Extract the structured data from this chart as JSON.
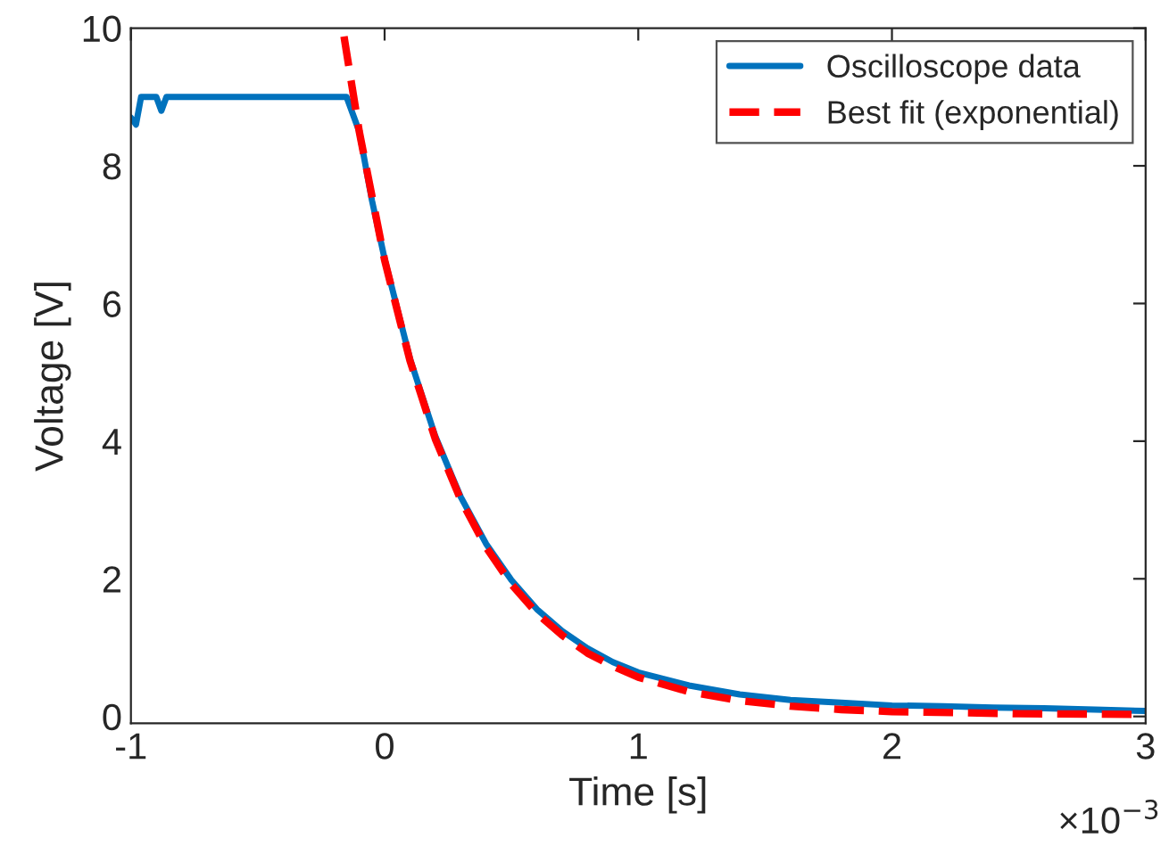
{
  "chart_data": {
    "type": "line",
    "xlabel": "Time [s]",
    "ylabel": "Voltage [V]",
    "xlim": [
      -1,
      3
    ],
    "ylim": [
      -0.1,
      10
    ],
    "xticks": [
      -1,
      0,
      1,
      2,
      3
    ],
    "yticks": [
      0,
      2,
      4,
      6,
      8,
      10
    ],
    "grid": false,
    "legend": "top right",
    "annotations": [
      "×10$^{−3}$"
    ],
    "series": [
      {
        "name": "Oscilloscope data",
        "color": "#0072bd",
        "line_style": "solid",
        "x": [
          -1,
          -0.98,
          -0.96,
          -0.9,
          -0.88,
          -0.86,
          -0.5,
          -0.15,
          -0.1,
          -0.05,
          0,
          0.1,
          0.2,
          0.3,
          0.4,
          0.5,
          0.6,
          0.7,
          0.8,
          0.9,
          1.0,
          1.2,
          1.4,
          1.6,
          1.8,
          2.0,
          2.2,
          2.4,
          2.6,
          2.8,
          3.0
        ],
        "values": [
          8.7,
          8.6,
          9.0,
          9.0,
          8.8,
          9.0,
          9.0,
          9.0,
          8.5,
          7.5,
          6.65,
          5.2,
          4.07,
          3.19,
          2.51,
          1.98,
          1.56,
          1.24,
          0.99,
          0.79,
          0.64,
          0.45,
          0.32,
          0.24,
          0.2,
          0.16,
          0.15,
          0.13,
          0.12,
          0.1,
          0.08
        ]
      },
      {
        "name": "Best fit (exponential)",
        "color": "#ff0000",
        "line_style": "dashed",
        "x": [
          -0.16,
          -0.1,
          0,
          0.1,
          0.2,
          0.3,
          0.4,
          0.5,
          0.6,
          0.7,
          0.8,
          0.9,
          1.0,
          1.2,
          1.4,
          1.6,
          1.8,
          2.0,
          2.5,
          3.0
        ],
        "values": [
          9.88,
          8.5,
          6.63,
          5.17,
          4.03,
          3.15,
          2.46,
          1.92,
          1.5,
          1.18,
          0.92,
          0.73,
          0.57,
          0.36,
          0.23,
          0.15,
          0.1,
          0.07,
          0.04,
          0.03
        ]
      }
    ]
  }
}
